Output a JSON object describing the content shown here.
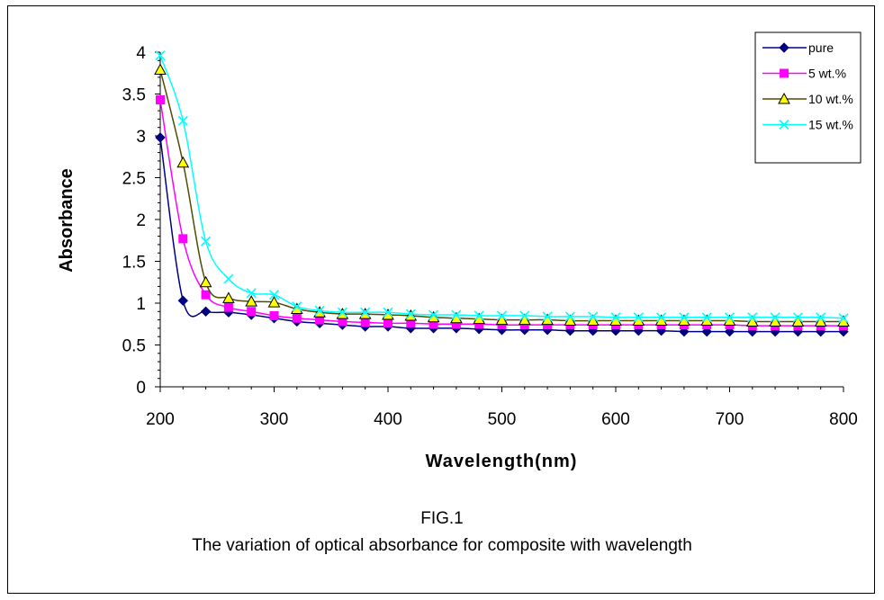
{
  "chart_data": {
    "type": "line",
    "xlabel": "Wavelength(nm)",
    "ylabel": "Absorbance",
    "xlim": [
      200,
      800
    ],
    "ylim": [
      0,
      4
    ],
    "x_ticks": [
      "200",
      "300",
      "400",
      "500",
      "600",
      "700",
      "800"
    ],
    "y_ticks": [
      "0",
      "0.5",
      "1",
      "1.5",
      "2",
      "2.5",
      "3",
      "3.5",
      "4"
    ],
    "grid": false,
    "legend_position": "top-right",
    "x": [
      200,
      220,
      240,
      260,
      280,
      300,
      320,
      340,
      360,
      380,
      400,
      420,
      440,
      460,
      480,
      500,
      520,
      540,
      560,
      580,
      600,
      620,
      640,
      660,
      680,
      700,
      720,
      740,
      760,
      780,
      800
    ],
    "series": [
      {
        "name": "pure",
        "color": "#000080",
        "marker": "diamond",
        "values": [
          2.98,
          1.03,
          0.9,
          0.89,
          0.86,
          0.82,
          0.78,
          0.76,
          0.74,
          0.72,
          0.72,
          0.7,
          0.7,
          0.7,
          0.69,
          0.68,
          0.68,
          0.68,
          0.67,
          0.67,
          0.67,
          0.67,
          0.67,
          0.66,
          0.66,
          0.66,
          0.66,
          0.66,
          0.66,
          0.66,
          0.66
        ]
      },
      {
        "name": "5 wt.%",
        "color": "#FF00FF",
        "marker": "square",
        "values": [
          3.43,
          1.77,
          1.1,
          0.95,
          0.9,
          0.85,
          0.82,
          0.8,
          0.78,
          0.77,
          0.76,
          0.76,
          0.75,
          0.75,
          0.75,
          0.74,
          0.74,
          0.74,
          0.74,
          0.74,
          0.74,
          0.74,
          0.74,
          0.74,
          0.74,
          0.74,
          0.73,
          0.73,
          0.73,
          0.73,
          0.73
        ]
      },
      {
        "name": "10 wt.%",
        "color": "#4D4D00",
        "marker_fill": "#FFFF00",
        "marker": "triangle",
        "values": [
          3.79,
          2.68,
          1.25,
          1.06,
          1.02,
          1.01,
          0.93,
          0.89,
          0.87,
          0.87,
          0.86,
          0.85,
          0.83,
          0.82,
          0.81,
          0.8,
          0.8,
          0.8,
          0.79,
          0.79,
          0.79,
          0.79,
          0.79,
          0.79,
          0.79,
          0.79,
          0.78,
          0.78,
          0.78,
          0.78,
          0.78
        ]
      },
      {
        "name": "15 wt.%",
        "color": "#00FFFF",
        "marker": "x",
        "values": [
          3.96,
          3.18,
          1.74,
          1.29,
          1.12,
          1.1,
          0.96,
          0.91,
          0.89,
          0.89,
          0.89,
          0.87,
          0.86,
          0.86,
          0.85,
          0.85,
          0.85,
          0.84,
          0.84,
          0.84,
          0.83,
          0.83,
          0.83,
          0.83,
          0.83,
          0.83,
          0.83,
          0.83,
          0.83,
          0.83,
          0.82
        ]
      }
    ]
  },
  "caption": {
    "fig_label": "FIG.1",
    "text": "The variation of optical absorbance for  composite with wavelength"
  }
}
